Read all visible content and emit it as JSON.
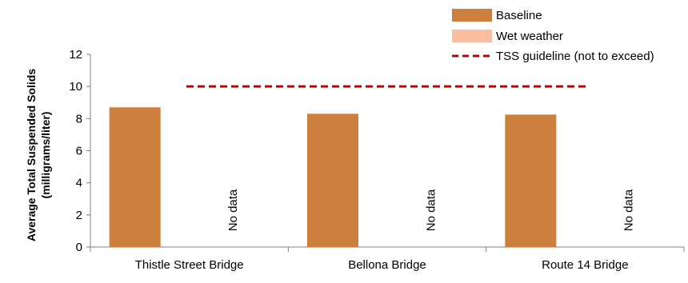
{
  "chart_data": {
    "type": "bar",
    "categories": [
      "Thistle Street Bridge",
      "Bellona Bridge",
      "Route 14 Bridge"
    ],
    "series": [
      {
        "name": "Baseline",
        "values": [
          8.7,
          8.3,
          8.25
        ],
        "color": "#cd7f3e"
      },
      {
        "name": "Wet weather",
        "values": [
          null,
          null,
          null
        ],
        "color": "#f9bfa0"
      }
    ],
    "reference_line": {
      "name": "TSS guideline (not to exceed)",
      "value": 10,
      "color": "#c00000",
      "style": "dashed"
    },
    "annotations": [
      "No data",
      "No data",
      "No data"
    ],
    "ylabel_line1": "Average Total Suspended Solids",
    "ylabel_line2": "(milligrams/liter)",
    "xlabel": "",
    "title": "",
    "ylim": [
      0,
      12
    ],
    "yticks": [
      0,
      2,
      4,
      6,
      8,
      10,
      12
    ],
    "grid": false,
    "legend_position": "top-right"
  }
}
